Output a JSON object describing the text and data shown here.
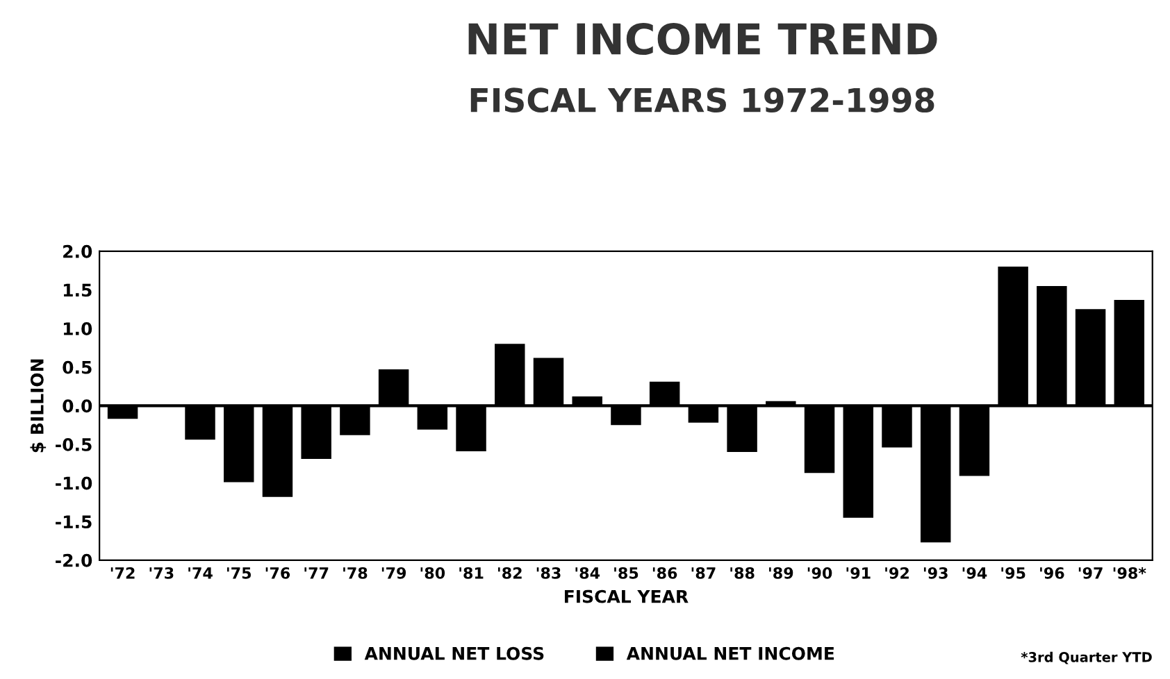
{
  "chart_data": {
    "type": "bar",
    "title": "NET INCOME TREND",
    "subtitle": "FISCAL YEARS 1972-1998",
    "xlabel": "FISCAL YEAR",
    "ylabel": "$ BILLION",
    "categories": [
      "'72",
      "'73",
      "'74",
      "'75",
      "'76",
      "'77",
      "'78",
      "'79",
      "'80",
      "'81",
      "'82",
      "'83",
      "'84",
      "'85",
      "'86",
      "'87",
      "'88",
      "'89",
      "'90",
      "'91",
      "'92",
      "'93",
      "'94",
      "'95",
      "'96",
      "'97",
      "'98*"
    ],
    "series": [
      {
        "name": "ANNUAL NET LOSS",
        "color": "#000000",
        "values": [
          -0.17,
          -0.01,
          -0.44,
          -0.99,
          -1.18,
          -0.69,
          -0.38,
          null,
          -0.31,
          -0.59,
          null,
          null,
          null,
          -0.25,
          null,
          -0.22,
          -0.6,
          null,
          -0.87,
          -1.45,
          -0.54,
          -1.77,
          -0.91,
          null,
          null,
          null,
          null
        ]
      },
      {
        "name": "ANNUAL NET INCOME",
        "color": "#000000",
        "values": [
          null,
          null,
          null,
          null,
          null,
          null,
          null,
          0.47,
          null,
          null,
          0.8,
          0.62,
          0.12,
          null,
          0.31,
          null,
          null,
          0.06,
          null,
          null,
          null,
          null,
          null,
          1.8,
          1.55,
          1.25,
          1.37
        ]
      }
    ],
    "ylim": [
      -2.0,
      2.0
    ],
    "yticks": [
      {
        "value": -2.0,
        "label": "-2.0"
      },
      {
        "value": -1.5,
        "label": "-1.5"
      },
      {
        "value": -1.0,
        "label": "-1.0"
      },
      {
        "value": -0.5,
        "label": "-0.5"
      },
      {
        "value": 0.0,
        "label": "0.0"
      },
      {
        "value": 0.5,
        "label": "0.5"
      },
      {
        "value": 1.0,
        "label": "1.0"
      },
      {
        "value": 1.5,
        "label": "1.5"
      },
      {
        "value": 2.0,
        "label": "2.0"
      }
    ],
    "legend": "bottom",
    "grid": false,
    "ref_lines": [
      {
        "axis": "y",
        "value": 0.0,
        "color": "#000000"
      }
    ],
    "annotations": [
      "*3rd Quarter YTD"
    ]
  }
}
